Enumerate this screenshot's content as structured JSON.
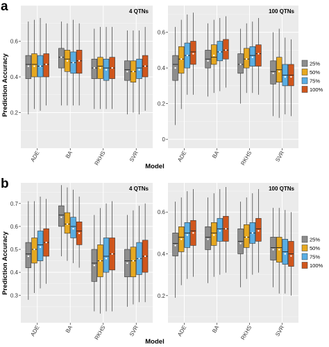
{
  "figure": {
    "panel_labels": [
      "a",
      "b"
    ],
    "y_title": "Prediction Accuracy",
    "x_title": "Model"
  },
  "colors": {
    "25%": "#8d8d8d",
    "50%": "#e6a820",
    "75%": "#5aaee3",
    "100%": "#d0561c",
    "panel_bg": "#ebebeb",
    "grid": "#ffffff"
  },
  "chart_data": [
    {
      "type": "boxplot",
      "panel": "a",
      "title": "4 QTNs",
      "categories": [
        "ADE",
        "BA",
        "RKHS",
        "SVR"
      ],
      "ylim": [
        0.0,
        0.8
      ],
      "yticks": [
        0.2,
        0.4,
        0.6
      ],
      "legend": null,
      "series": [
        {
          "name": "25%",
          "boxes": [
            {
              "whislo": 0.19,
              "q1": 0.39,
              "med": 0.47,
              "q3": 0.52,
              "whishi": 0.71,
              "mean": 0.46
            },
            {
              "whislo": 0.24,
              "q1": 0.45,
              "med": 0.51,
              "q3": 0.56,
              "whishi": 0.71,
              "mean": 0.51
            },
            {
              "whislo": 0.22,
              "q1": 0.39,
              "med": 0.45,
              "q3": 0.5,
              "whishi": 0.67,
              "mean": 0.45
            },
            {
              "whislo": 0.19,
              "q1": 0.38,
              "med": 0.44,
              "q3": 0.49,
              "whishi": 0.66,
              "mean": 0.43
            }
          ]
        },
        {
          "name": "50%",
          "boxes": [
            {
              "whislo": 0.22,
              "q1": 0.4,
              "med": 0.47,
              "q3": 0.53,
              "whishi": 0.72,
              "mean": 0.46
            },
            {
              "whislo": 0.24,
              "q1": 0.43,
              "med": 0.5,
              "q3": 0.55,
              "whishi": 0.7,
              "mean": 0.49
            },
            {
              "whislo": 0.22,
              "q1": 0.39,
              "med": 0.46,
              "q3": 0.51,
              "whishi": 0.68,
              "mean": 0.45
            },
            {
              "whislo": 0.2,
              "q1": 0.37,
              "med": 0.43,
              "q3": 0.49,
              "whishi": 0.66,
              "mean": 0.43
            }
          ]
        },
        {
          "name": "75%",
          "boxes": [
            {
              "whislo": 0.21,
              "q1": 0.4,
              "med": 0.46,
              "q3": 0.52,
              "whishi": 0.73,
              "mean": 0.46
            },
            {
              "whislo": 0.24,
              "q1": 0.42,
              "med": 0.48,
              "q3": 0.54,
              "whishi": 0.72,
              "mean": 0.48
            },
            {
              "whislo": 0.22,
              "q1": 0.38,
              "med": 0.45,
              "q3": 0.5,
              "whishi": 0.68,
              "mean": 0.44
            },
            {
              "whislo": 0.19,
              "q1": 0.39,
              "med": 0.45,
              "q3": 0.5,
              "whishi": 0.66,
              "mean": 0.44
            }
          ]
        },
        {
          "name": "100%",
          "boxes": [
            {
              "whislo": 0.24,
              "q1": 0.4,
              "med": 0.47,
              "q3": 0.53,
              "whishi": 0.7,
              "mean": 0.47
            },
            {
              "whislo": 0.24,
              "q1": 0.42,
              "med": 0.49,
              "q3": 0.55,
              "whishi": 0.7,
              "mean": 0.49
            },
            {
              "whislo": 0.22,
              "q1": 0.39,
              "med": 0.45,
              "q3": 0.51,
              "whishi": 0.68,
              "mean": 0.45
            },
            {
              "whislo": 0.21,
              "q1": 0.4,
              "med": 0.46,
              "q3": 0.52,
              "whishi": 0.68,
              "mean": 0.46
            }
          ]
        }
      ]
    },
    {
      "type": "boxplot",
      "panel": "a",
      "title": "100 QTNs",
      "categories": [
        "ADE",
        "BA",
        "RKHS",
        "SVR"
      ],
      "ylim": [
        -0.05,
        0.75
      ],
      "yticks": [
        0.0,
        0.2,
        0.4,
        0.6
      ],
      "legend": "right",
      "series": [
        {
          "name": "25%",
          "boxes": [
            {
              "whislo": 0.08,
              "q1": 0.33,
              "med": 0.42,
              "q3": 0.47,
              "whishi": 0.63,
              "mean": 0.4
            },
            {
              "whislo": 0.24,
              "q1": 0.4,
              "med": 0.45,
              "q3": 0.5,
              "whishi": 0.65,
              "mean": 0.44
            },
            {
              "whislo": 0.2,
              "q1": 0.37,
              "med": 0.42,
              "q3": 0.48,
              "whishi": 0.62,
              "mean": 0.42
            },
            {
              "whislo": 0.13,
              "q1": 0.31,
              "med": 0.38,
              "q3": 0.44,
              "whishi": 0.6,
              "mean": 0.37
            }
          ]
        },
        {
          "name": "50%",
          "boxes": [
            {
              "whislo": 0.17,
              "q1": 0.37,
              "med": 0.45,
              "q3": 0.52,
              "whishi": 0.67,
              "mean": 0.45
            },
            {
              "whislo": 0.26,
              "q1": 0.42,
              "med": 0.46,
              "q3": 0.53,
              "whishi": 0.67,
              "mean": 0.47
            },
            {
              "whislo": 0.26,
              "q1": 0.4,
              "med": 0.45,
              "q3": 0.51,
              "whishi": 0.65,
              "mean": 0.45
            },
            {
              "whislo": 0.12,
              "q1": 0.32,
              "med": 0.39,
              "q3": 0.46,
              "whishi": 0.62,
              "mean": 0.38
            }
          ]
        },
        {
          "name": "75%",
          "boxes": [
            {
              "whislo": 0.25,
              "q1": 0.4,
              "med": 0.47,
              "q3": 0.54,
              "whishi": 0.7,
              "mean": 0.47
            },
            {
              "whislo": 0.27,
              "q1": 0.44,
              "med": 0.49,
              "q3": 0.55,
              "whishi": 0.68,
              "mean": 0.49
            },
            {
              "whislo": 0.26,
              "q1": 0.41,
              "med": 0.47,
              "q3": 0.52,
              "whishi": 0.66,
              "mean": 0.46
            },
            {
              "whislo": 0.14,
              "q1": 0.3,
              "med": 0.36,
              "q3": 0.42,
              "whishi": 0.57,
              "mean": 0.35
            }
          ]
        },
        {
          "name": "100%",
          "boxes": [
            {
              "whislo": 0.25,
              "q1": 0.42,
              "med": 0.49,
              "q3": 0.55,
              "whishi": 0.71,
              "mean": 0.48
            },
            {
              "whislo": 0.29,
              "q1": 0.45,
              "med": 0.5,
              "q3": 0.56,
              "whishi": 0.69,
              "mean": 0.5
            },
            {
              "whislo": 0.25,
              "q1": 0.41,
              "med": 0.48,
              "q3": 0.53,
              "whishi": 0.68,
              "mean": 0.48
            },
            {
              "whislo": 0.13,
              "q1": 0.3,
              "med": 0.36,
              "q3": 0.42,
              "whishi": 0.56,
              "mean": 0.35
            }
          ]
        }
      ]
    },
    {
      "type": "boxplot",
      "panel": "b",
      "title": "4 QTNs",
      "categories": [
        "ADE",
        "BA",
        "RKHS",
        "SVR"
      ],
      "ylim": [
        0.18,
        0.79
      ],
      "yticks": [
        0.3,
        0.4,
        0.5,
        0.6,
        0.7
      ],
      "legend": null,
      "series": [
        {
          "name": "25%",
          "boxes": [
            {
              "whislo": 0.28,
              "q1": 0.42,
              "med": 0.48,
              "q3": 0.53,
              "whishi": 0.71,
              "mean": 0.47
            },
            {
              "whislo": 0.47,
              "q1": 0.6,
              "med": 0.65,
              "q3": 0.69,
              "whishi": 0.78,
              "mean": 0.64
            },
            {
              "whislo": 0.23,
              "q1": 0.36,
              "med": 0.44,
              "q3": 0.5,
              "whishi": 0.65,
              "mean": 0.43
            },
            {
              "whislo": 0.25,
              "q1": 0.38,
              "med": 0.45,
              "q3": 0.5,
              "whishi": 0.65,
              "mean": 0.44
            }
          ]
        },
        {
          "name": "50%",
          "boxes": [
            {
              "whislo": 0.31,
              "q1": 0.44,
              "med": 0.5,
              "q3": 0.55,
              "whishi": 0.71,
              "mean": 0.5
            },
            {
              "whislo": 0.45,
              "q1": 0.57,
              "med": 0.61,
              "q3": 0.66,
              "whishi": 0.77,
              "mean": 0.61
            },
            {
              "whislo": 0.22,
              "q1": 0.38,
              "med": 0.45,
              "q3": 0.52,
              "whishi": 0.68,
              "mean": 0.45
            },
            {
              "whislo": 0.26,
              "q1": 0.38,
              "med": 0.45,
              "q3": 0.51,
              "whishi": 0.67,
              "mean": 0.45
            }
          ]
        },
        {
          "name": "75%",
          "boxes": [
            {
              "whislo": 0.33,
              "q1": 0.45,
              "med": 0.52,
              "q3": 0.58,
              "whishi": 0.73,
              "mean": 0.51
            },
            {
              "whislo": 0.44,
              "q1": 0.55,
              "med": 0.6,
              "q3": 0.64,
              "whishi": 0.76,
              "mean": 0.59
            },
            {
              "whislo": 0.23,
              "q1": 0.4,
              "med": 0.47,
              "q3": 0.55,
              "whishi": 0.7,
              "mean": 0.46
            },
            {
              "whislo": 0.27,
              "q1": 0.39,
              "med": 0.46,
              "q3": 0.53,
              "whishi": 0.69,
              "mean": 0.46
            }
          ]
        },
        {
          "name": "100%",
          "boxes": [
            {
              "whislo": 0.35,
              "q1": 0.47,
              "med": 0.53,
              "q3": 0.59,
              "whishi": 0.72,
              "mean": 0.53
            },
            {
              "whislo": 0.42,
              "q1": 0.52,
              "med": 0.58,
              "q3": 0.62,
              "whishi": 0.73,
              "mean": 0.57
            },
            {
              "whislo": 0.23,
              "q1": 0.41,
              "med": 0.48,
              "q3": 0.55,
              "whishi": 0.71,
              "mean": 0.48
            },
            {
              "whislo": 0.27,
              "q1": 0.4,
              "med": 0.47,
              "q3": 0.54,
              "whishi": 0.7,
              "mean": 0.47
            }
          ]
        }
      ]
    },
    {
      "type": "boxplot",
      "panel": "b",
      "title": "100 QTNs",
      "categories": [
        "ADE",
        "BA",
        "RKHS",
        "SVR"
      ],
      "ylim": [
        0.07,
        0.74
      ],
      "yticks": [
        0.2,
        0.4,
        0.6
      ],
      "legend": "right",
      "series": [
        {
          "name": "25%",
          "boxes": [
            {
              "whislo": 0.19,
              "q1": 0.39,
              "med": 0.45,
              "q3": 0.5,
              "whishi": 0.65,
              "mean": 0.44
            },
            {
              "whislo": 0.26,
              "q1": 0.42,
              "med": 0.48,
              "q3": 0.53,
              "whishi": 0.67,
              "mean": 0.47
            },
            {
              "whislo": 0.24,
              "q1": 0.4,
              "med": 0.46,
              "q3": 0.52,
              "whishi": 0.65,
              "mean": 0.45
            },
            {
              "whislo": 0.24,
              "q1": 0.37,
              "med": 0.43,
              "q3": 0.48,
              "whishi": 0.62,
              "mean": 0.42
            }
          ]
        },
        {
          "name": "50%",
          "boxes": [
            {
              "whislo": 0.25,
              "q1": 0.41,
              "med": 0.48,
              "q3": 0.53,
              "whishi": 0.67,
              "mean": 0.47
            },
            {
              "whislo": 0.29,
              "q1": 0.44,
              "med": 0.5,
              "q3": 0.55,
              "whishi": 0.69,
              "mean": 0.49
            },
            {
              "whislo": 0.28,
              "q1": 0.43,
              "med": 0.48,
              "q3": 0.54,
              "whishi": 0.67,
              "mean": 0.48
            },
            {
              "whislo": 0.21,
              "q1": 0.36,
              "med": 0.43,
              "q3": 0.48,
              "whishi": 0.62,
              "mean": 0.42
            }
          ]
        },
        {
          "name": "75%",
          "boxes": [
            {
              "whislo": 0.28,
              "q1": 0.43,
              "med": 0.5,
              "q3": 0.55,
              "whishi": 0.7,
              "mean": 0.49
            },
            {
              "whislo": 0.3,
              "q1": 0.46,
              "med": 0.52,
              "q3": 0.57,
              "whishi": 0.71,
              "mean": 0.51
            },
            {
              "whislo": 0.3,
              "q1": 0.45,
              "med": 0.5,
              "q3": 0.55,
              "whishi": 0.69,
              "mean": 0.5
            },
            {
              "whislo": 0.21,
              "q1": 0.35,
              "med": 0.41,
              "q3": 0.47,
              "whishi": 0.61,
              "mean": 0.4
            }
          ]
        },
        {
          "name": "100%",
          "boxes": [
            {
              "whislo": 0.29,
              "q1": 0.44,
              "med": 0.51,
              "q3": 0.56,
              "whishi": 0.71,
              "mean": 0.5
            },
            {
              "whislo": 0.31,
              "q1": 0.46,
              "med": 0.52,
              "q3": 0.58,
              "whishi": 0.72,
              "mean": 0.52
            },
            {
              "whislo": 0.31,
              "q1": 0.46,
              "med": 0.52,
              "q3": 0.57,
              "whishi": 0.71,
              "mean": 0.51
            },
            {
              "whislo": 0.2,
              "q1": 0.34,
              "med": 0.4,
              "q3": 0.46,
              "whishi": 0.6,
              "mean": 0.39
            }
          ]
        }
      ]
    }
  ]
}
